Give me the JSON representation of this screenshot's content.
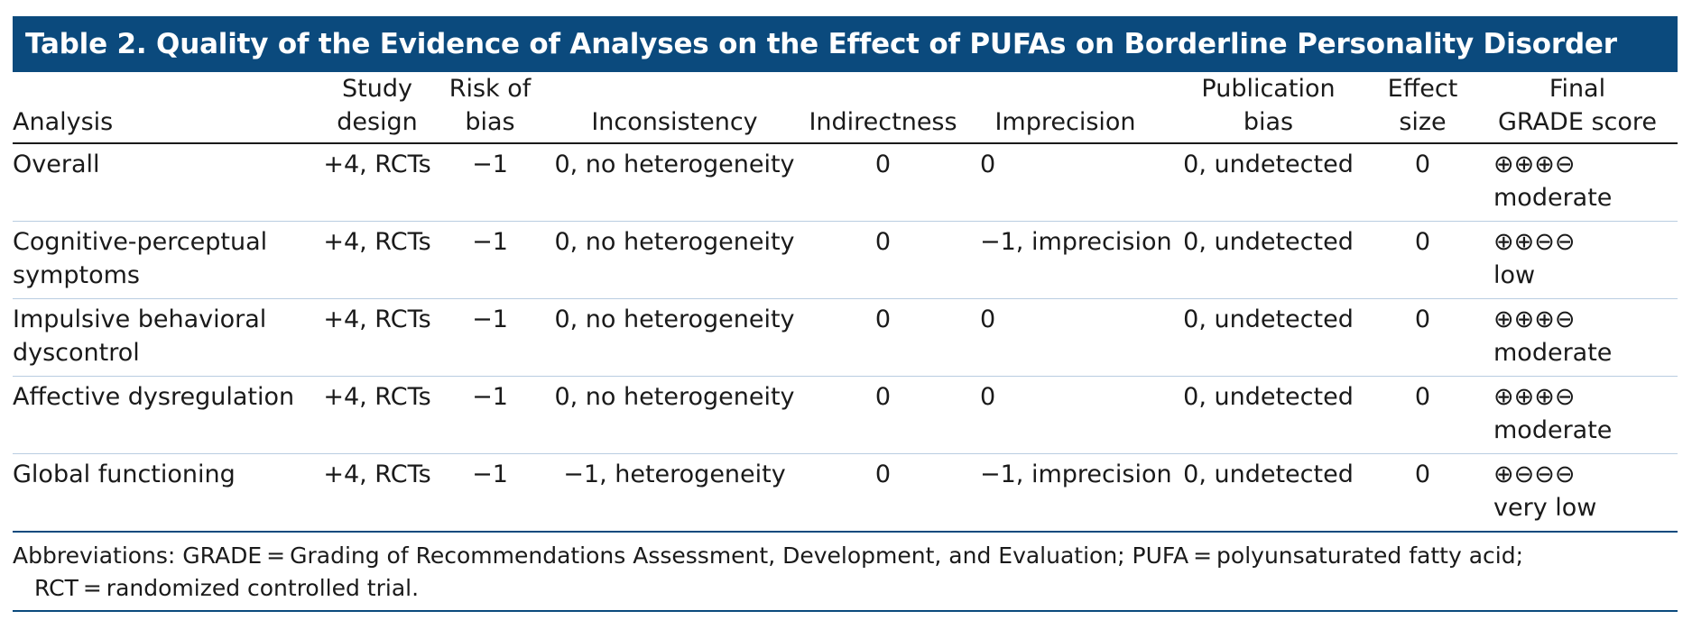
{
  "title": "Table 2. Quality of the Evidence of Analyses on the Effect of PUFAs on Borderline Personality Disorder",
  "headers": {
    "analysis": "Analysis",
    "study_design": [
      "Study",
      "design"
    ],
    "risk_of_bias": [
      "Risk of",
      "bias"
    ],
    "inconsistency": "Inconsistency",
    "indirectness": "Indirectness",
    "imprecision": "Imprecision",
    "publication_bias": [
      "Publication",
      "bias"
    ],
    "effect_size": [
      "Effect",
      "size"
    ],
    "final_grade": [
      "Final",
      "GRADE score"
    ]
  },
  "rows": [
    {
      "analysis": [
        "Overall",
        ""
      ],
      "study_design": "+4, RCTs",
      "risk_of_bias": "−1",
      "inconsistency": "0, no heterogeneity",
      "indirectness": "0",
      "imprecision": "0",
      "publication_bias": "0, undetected",
      "effect_size": "0",
      "grade_symbols": "⊕⊕⊕⊖",
      "grade_label": "moderate"
    },
    {
      "analysis": [
        "Cognitive-perceptual",
        "symptoms"
      ],
      "study_design": "+4, RCTs",
      "risk_of_bias": "−1",
      "inconsistency": "0, no heterogeneity",
      "indirectness": "0",
      "imprecision": "−1, imprecision",
      "publication_bias": "0, undetected",
      "effect_size": "0",
      "grade_symbols": "⊕⊕⊖⊖",
      "grade_label": "low"
    },
    {
      "analysis": [
        "Impulsive behavioral",
        "dyscontrol"
      ],
      "study_design": "+4, RCTs",
      "risk_of_bias": "−1",
      "inconsistency": "0, no heterogeneity",
      "indirectness": "0",
      "imprecision": "0",
      "publication_bias": "0, undetected",
      "effect_size": "0",
      "grade_symbols": "⊕⊕⊕⊖",
      "grade_label": "moderate"
    },
    {
      "analysis": [
        "Affective dysregulation",
        ""
      ],
      "study_design": "+4, RCTs",
      "risk_of_bias": "−1",
      "inconsistency": "0, no heterogeneity",
      "indirectness": "0",
      "imprecision": "0",
      "publication_bias": "0, undetected",
      "effect_size": "0",
      "grade_symbols": "⊕⊕⊕⊖",
      "grade_label": "moderate"
    },
    {
      "analysis": [
        "Global functioning",
        ""
      ],
      "study_design": "+4, RCTs",
      "risk_of_bias": "−1",
      "inconsistency": "−1, heterogeneity",
      "indirectness": "0",
      "imprecision": "−1, imprecision",
      "publication_bias": "0, undetected",
      "effect_size": "0",
      "grade_symbols": "⊕⊖⊖⊖",
      "grade_label": "very low"
    }
  ],
  "footnote": {
    "line1": "Abbreviations: GRADE = Grading of Recommendations Assessment, Development, and Evaluation; PUFA = polyunsaturated fatty acid;",
    "line2": "RCT = randomized controlled trial."
  },
  "colors": {
    "title_bg": "#0b4a7d",
    "title_text": "#ffffff",
    "row_divider": "#b9cde1"
  }
}
